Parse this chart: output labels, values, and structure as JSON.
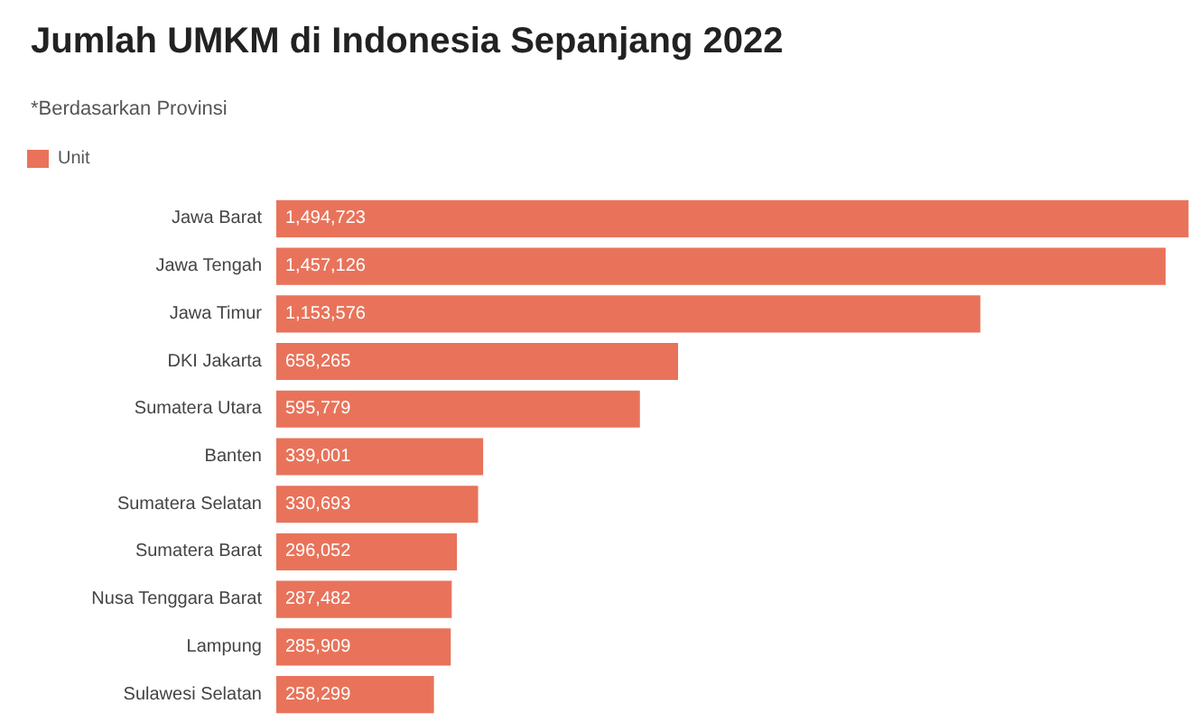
{
  "chart_data": {
    "type": "bar",
    "orientation": "horizontal",
    "title": "Jumlah UMKM di Indonesia Sepanjang 2022",
    "subtitle": "*Berdasarkan Provinsi",
    "categories": [
      "Jawa Barat",
      "Jawa Tengah",
      "Jawa Timur",
      "DKI Jakarta",
      "Sumatera Utara",
      "Banten",
      "Sumatera Selatan",
      "Sumatera Barat",
      "Nusa Tenggara Barat",
      "Lampung",
      "Sulawesi Selatan"
    ],
    "series": [
      {
        "name": "Unit",
        "color": "#e8735a",
        "values": [
          1494723,
          1457126,
          1153576,
          658265,
          595779,
          339001,
          330693,
          296052,
          287482,
          285909,
          258299
        ],
        "value_labels": [
          "1,494,723",
          "1,457,126",
          "1,153,576",
          "658,265",
          "595,779",
          "339,001",
          "330,693",
          "296,052",
          "287,482",
          "285,909",
          "258,299"
        ]
      }
    ],
    "legend": "top left"
  }
}
